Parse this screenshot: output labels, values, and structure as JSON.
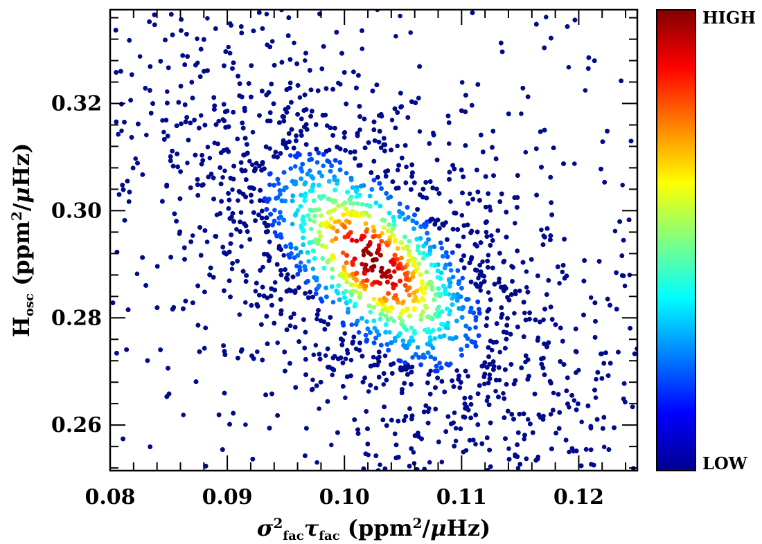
{
  "chart_data": {
    "type": "scatter",
    "subtype": "density-colored scatter",
    "title": "",
    "xlabel": {
      "parts": [
        {
          "text": "σ",
          "style": "italic"
        },
        {
          "text": "2",
          "style": "sup"
        },
        {
          "text": "fac",
          "style": "sub"
        },
        {
          "text": "τ",
          "style": "italic"
        },
        {
          "text": "fac",
          "style": "sub"
        },
        {
          "text": " (ppm",
          "style": "normal"
        },
        {
          "text": "2",
          "style": "sup"
        },
        {
          "text": "/",
          "style": "normal"
        },
        {
          "text": "μ",
          "style": "italic"
        },
        {
          "text": "Hz)",
          "style": "normal"
        }
      ]
    },
    "ylabel": {
      "parts": [
        {
          "text": "H",
          "style": "normal"
        },
        {
          "text": "osc",
          "style": "sub"
        },
        {
          "text": " (ppm",
          "style": "normal"
        },
        {
          "text": "2",
          "style": "sup"
        },
        {
          "text": "/",
          "style": "normal"
        },
        {
          "text": "μ",
          "style": "italic"
        },
        {
          "text": "Hz)",
          "style": "normal"
        }
      ]
    },
    "xlim": [
      0.08,
      0.125
    ],
    "ylim": [
      0.2515,
      0.3375
    ],
    "x_ticks": [
      "0.08",
      "0.09",
      "0.10",
      "0.11",
      "0.12"
    ],
    "y_ticks": [
      "0.26",
      "0.28",
      "0.30",
      "0.32"
    ],
    "grid": false,
    "colorbar": {
      "high_label": "HIGH",
      "low_label": "LOW",
      "colormap": [
        "#00008f",
        "#0000ff",
        "#0080ff",
        "#00ffff",
        "#80ff80",
        "#ffff00",
        "#ff8000",
        "#ff0000",
        "#800000"
      ]
    },
    "distribution": {
      "n_points": 9000,
      "center": [
        0.1025,
        0.2905
      ],
      "sigma_x": 0.0075,
      "sigma_y": 0.0165,
      "correlation": -0.62,
      "background_fraction": 0.12
    },
    "point_color_low": "#000a8c"
  }
}
